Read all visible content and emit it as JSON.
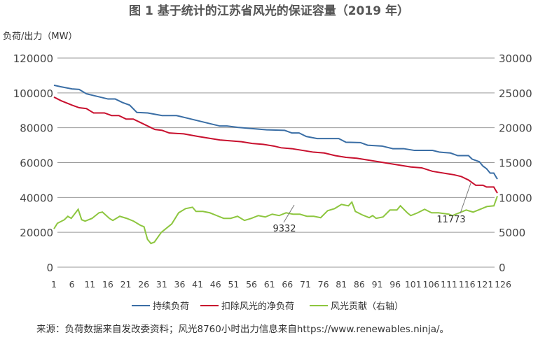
{
  "chart_data": {
    "type": "line",
    "title": "图 1 基于统计的江苏省风光的保证容量（2019 年）",
    "ylabel": "负荷/出力（MW）",
    "ylim": [
      0,
      120000
    ],
    "y2lim": [
      0,
      30000
    ],
    "yticks": [
      "0",
      "20000",
      "40000",
      "60000",
      "80000",
      "100000",
      "120000"
    ],
    "y2ticks": [
      "0",
      "5000",
      "10000",
      "15000",
      "20000",
      "25000",
      "30000"
    ],
    "xticks": [
      "1",
      "6",
      "11",
      "16",
      "21",
      "26",
      "31",
      "36",
      "41",
      "46",
      "51",
      "56",
      "61",
      "66",
      "71",
      "76",
      "81",
      "86",
      "91",
      "96",
      "101",
      "106",
      "111",
      "116",
      "121",
      "126"
    ],
    "xlim": [
      1,
      126
    ],
    "grid": true,
    "legend_position": "bottom",
    "series": [
      {
        "name": "持续负荷",
        "axis": "left",
        "color": "#3a6ea5",
        "points": [
          [
            1,
            104400
          ],
          [
            3,
            103500
          ],
          [
            6,
            102300
          ],
          [
            8,
            102000
          ],
          [
            10,
            99500
          ],
          [
            13,
            98000
          ],
          [
            16,
            96500
          ],
          [
            18,
            96500
          ],
          [
            20,
            94500
          ],
          [
            22,
            93000
          ],
          [
            24,
            88800
          ],
          [
            27,
            88500
          ],
          [
            31,
            87000
          ],
          [
            35,
            87000
          ],
          [
            38,
            85500
          ],
          [
            41,
            84000
          ],
          [
            43,
            83000
          ],
          [
            45,
            82000
          ],
          [
            47,
            81000
          ],
          [
            49,
            81000
          ],
          [
            52,
            80200
          ],
          [
            56,
            79500
          ],
          [
            60,
            78800
          ],
          [
            65,
            78500
          ],
          [
            67,
            77000
          ],
          [
            69,
            77000
          ],
          [
            71,
            75000
          ],
          [
            74,
            73800
          ],
          [
            80,
            73800
          ],
          [
            82,
            71700
          ],
          [
            86,
            71500
          ],
          [
            88,
            70000
          ],
          [
            92,
            69500
          ],
          [
            95,
            68000
          ],
          [
            98,
            68000
          ],
          [
            101,
            67000
          ],
          [
            106,
            67000
          ],
          [
            108,
            66000
          ],
          [
            111,
            65500
          ],
          [
            113,
            64000
          ],
          [
            116,
            64000
          ],
          [
            117,
            62000
          ],
          [
            119,
            60500
          ],
          [
            120,
            58000
          ],
          [
            121,
            56500
          ],
          [
            122,
            54000
          ],
          [
            123,
            54000
          ],
          [
            124,
            50500
          ]
        ]
      },
      {
        "name": "扣除风光的净负荷",
        "axis": "left",
        "color": "#c8102e",
        "points": [
          [
            1,
            97600
          ],
          [
            3,
            95500
          ],
          [
            6,
            93000
          ],
          [
            8,
            91500
          ],
          [
            10,
            91000
          ],
          [
            12,
            88500
          ],
          [
            15,
            88500
          ],
          [
            17,
            87000
          ],
          [
            19,
            87000
          ],
          [
            21,
            85000
          ],
          [
            23,
            85000
          ],
          [
            25,
            83000
          ],
          [
            27,
            81000
          ],
          [
            29,
            79000
          ],
          [
            31,
            78500
          ],
          [
            33,
            77000
          ],
          [
            37,
            76500
          ],
          [
            41,
            75000
          ],
          [
            44,
            74000
          ],
          [
            47,
            73000
          ],
          [
            50,
            72500
          ],
          [
            53,
            72000
          ],
          [
            56,
            71000
          ],
          [
            59,
            70500
          ],
          [
            62,
            69500
          ],
          [
            64,
            68500
          ],
          [
            67,
            68000
          ],
          [
            70,
            67000
          ],
          [
            73,
            66000
          ],
          [
            76,
            65500
          ],
          [
            79,
            64000
          ],
          [
            82,
            63000
          ],
          [
            85,
            62500
          ],
          [
            88,
            61500
          ],
          [
            91,
            60500
          ],
          [
            94,
            59500
          ],
          [
            97,
            58500
          ],
          [
            100,
            57500
          ],
          [
            103,
            57000
          ],
          [
            106,
            55000
          ],
          [
            109,
            54000
          ],
          [
            112,
            53000
          ],
          [
            114,
            52000
          ],
          [
            116,
            50000
          ],
          [
            118,
            47000
          ],
          [
            120,
            47000
          ],
          [
            121,
            46000
          ],
          [
            123,
            46000
          ],
          [
            124,
            42500
          ]
        ]
      },
      {
        "name": "风光贡献（右轴）",
        "axis": "right",
        "color": "#8dc63f",
        "points": [
          [
            1,
            5500
          ],
          [
            2,
            6300
          ],
          [
            4,
            6800
          ],
          [
            5,
            7300
          ],
          [
            6,
            7000
          ],
          [
            8,
            8300
          ],
          [
            9,
            6800
          ],
          [
            10,
            6600
          ],
          [
            12,
            7000
          ],
          [
            14,
            7800
          ],
          [
            15,
            7900
          ],
          [
            17,
            7000
          ],
          [
            18,
            6700
          ],
          [
            20,
            7300
          ],
          [
            22,
            7000
          ],
          [
            24,
            6600
          ],
          [
            26,
            6000
          ],
          [
            27,
            5800
          ],
          [
            28,
            4000
          ],
          [
            29,
            3400
          ],
          [
            30,
            3600
          ],
          [
            32,
            5000
          ],
          [
            34,
            5800
          ],
          [
            35,
            6200
          ],
          [
            37,
            7800
          ],
          [
            39,
            8400
          ],
          [
            41,
            8600
          ],
          [
            42,
            8000
          ],
          [
            44,
            8000
          ],
          [
            46,
            7800
          ],
          [
            48,
            7400
          ],
          [
            50,
            7000
          ],
          [
            52,
            7000
          ],
          [
            54,
            7300
          ],
          [
            56,
            6700
          ],
          [
            58,
            7000
          ],
          [
            60,
            7400
          ],
          [
            62,
            7200
          ],
          [
            64,
            7600
          ],
          [
            66,
            7400
          ],
          [
            68,
            7800
          ],
          [
            70,
            7600
          ],
          [
            72,
            7600
          ],
          [
            74,
            7300
          ],
          [
            76,
            7300
          ],
          [
            78,
            7100
          ],
          [
            80,
            8100
          ],
          [
            82,
            8400
          ],
          [
            84,
            9000
          ],
          [
            86,
            8800
          ],
          [
            87,
            9332
          ],
          [
            88,
            8000
          ],
          [
            90,
            7500
          ],
          [
            92,
            7100
          ],
          [
            93,
            7400
          ],
          [
            94,
            7000
          ],
          [
            96,
            7200
          ],
          [
            98,
            8200
          ],
          [
            100,
            8200
          ],
          [
            101,
            8800
          ],
          [
            103,
            7800
          ],
          [
            104,
            7400
          ],
          [
            106,
            7800
          ],
          [
            108,
            8300
          ],
          [
            110,
            7800
          ],
          [
            112,
            7800
          ],
          [
            115,
            7600
          ],
          [
            116,
            7400
          ],
          [
            118,
            7800
          ],
          [
            120,
            8200
          ],
          [
            122,
            7900
          ],
          [
            124,
            8300
          ],
          [
            126,
            8700
          ],
          [
            128,
            8800
          ],
          [
            129,
            10200
          ]
        ]
      }
    ],
    "annotations": [
      {
        "text": "9332",
        "x": 69,
        "y": 9332,
        "axis": "right"
      },
      {
        "text": "11773",
        "x": 118,
        "y": 11773,
        "axis": "right"
      }
    ],
    "source": "来源：负荷数据来自发改委资料；风光8760小时出力信息来自https://www.renewables.ninja/。"
  }
}
